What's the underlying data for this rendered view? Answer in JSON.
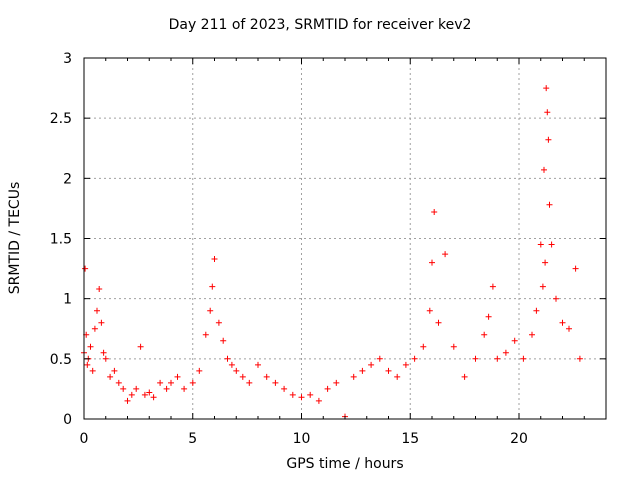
{
  "chart_data": {
    "type": "scatter",
    "title": "Day 211 of 2023, SRMTID for receiver kev2",
    "xlabel": "GPS time / hours",
    "ylabel": "SRMTID / TECUs",
    "xlim": [
      0,
      24
    ],
    "ylim": [
      0,
      3
    ],
    "xticks": [
      0,
      5,
      10,
      15,
      20
    ],
    "yticks": [
      0,
      0.5,
      1,
      1.5,
      2,
      2.5,
      3
    ],
    "xtick_labels": [
      "0",
      "5",
      "10",
      "15",
      "20"
    ],
    "ytick_labels": [
      "0",
      "0.5",
      "1",
      "1.5",
      "2",
      "2.5",
      "3"
    ],
    "grid": true,
    "marker": "+",
    "color": "#ff0000",
    "series": [
      {
        "name": "SRMTID",
        "x": [
          0.0,
          0.05,
          0.1,
          0.15,
          0.2,
          0.3,
          0.4,
          0.5,
          0.6,
          0.7,
          0.8,
          0.9,
          1.0,
          1.2,
          1.4,
          1.6,
          1.8,
          2.0,
          2.2,
          2.4,
          2.6,
          2.8,
          3.0,
          3.2,
          3.5,
          3.8,
          4.0,
          4.3,
          4.6,
          5.0,
          5.3,
          5.6,
          5.8,
          5.9,
          6.0,
          6.2,
          6.4,
          6.6,
          6.8,
          7.0,
          7.3,
          7.6,
          8.0,
          8.4,
          8.8,
          9.2,
          9.6,
          10.0,
          10.4,
          10.8,
          11.2,
          11.6,
          12.0,
          12.4,
          12.8,
          13.2,
          13.6,
          14.0,
          14.4,
          14.8,
          15.2,
          15.6,
          15.9,
          16.0,
          16.1,
          16.3,
          16.6,
          17.0,
          17.5,
          18.0,
          18.4,
          18.6,
          18.8,
          19.0,
          19.4,
          19.8,
          20.2,
          20.6,
          20.8,
          21.0,
          21.1,
          21.15,
          21.2,
          21.25,
          21.3,
          21.35,
          21.4,
          21.5,
          21.7,
          22.0,
          22.3,
          22.6,
          22.8
        ],
        "y": [
          0.55,
          1.25,
          0.7,
          0.45,
          0.5,
          0.6,
          0.4,
          0.75,
          0.9,
          1.08,
          0.8,
          0.55,
          0.5,
          0.35,
          0.4,
          0.3,
          0.25,
          0.15,
          0.2,
          0.25,
          0.6,
          0.2,
          0.22,
          0.18,
          0.3,
          0.25,
          0.3,
          0.35,
          0.25,
          0.3,
          0.4,
          0.7,
          0.9,
          1.1,
          1.33,
          0.8,
          0.65,
          0.5,
          0.45,
          0.4,
          0.35,
          0.3,
          0.45,
          0.35,
          0.3,
          0.25,
          0.2,
          0.18,
          0.2,
          0.15,
          0.25,
          0.3,
          0.02,
          0.35,
          0.4,
          0.45,
          0.5,
          0.4,
          0.35,
          0.45,
          0.5,
          0.6,
          0.9,
          1.3,
          1.72,
          0.8,
          1.37,
          0.6,
          0.35,
          0.5,
          0.7,
          0.85,
          1.1,
          0.5,
          0.55,
          0.65,
          0.5,
          0.7,
          0.9,
          1.45,
          1.1,
          2.07,
          1.3,
          2.75,
          2.55,
          2.32,
          1.78,
          1.45,
          1.0,
          0.8,
          0.75,
          1.25,
          0.5
        ]
      }
    ]
  }
}
